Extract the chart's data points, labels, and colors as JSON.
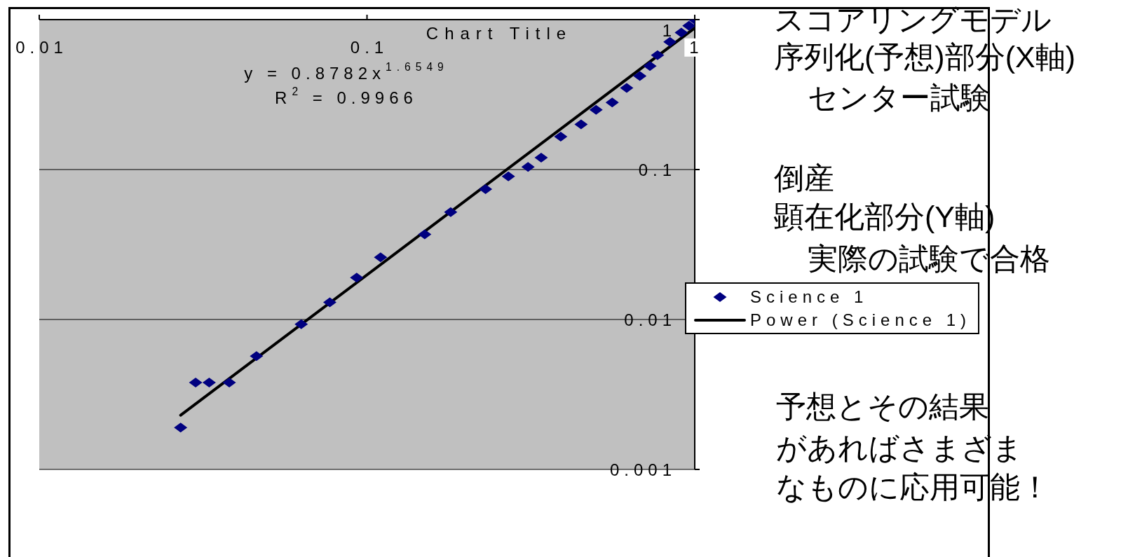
{
  "chart_data": {
    "type": "scatter",
    "title": "Chart Title",
    "annotations": [
      "y = 0.8782x$^{1.6549}$",
      "R$^{2}$ = 0.9966",
      "スコアリングモデル",
      "序列化(予想)部分(X軸)",
      "センター試験",
      "倒産",
      "顕在化部分(Y軸)",
      "実際の試験で合格",
      "予想とその結果",
      "があればさまざま",
      "なものに応用可能！"
    ],
    "series": [
      {
        "name": "Science 1",
        "color": "#000080",
        "marker": "diamond",
        "x": [
          0.027,
          0.03,
          0.033,
          0.038,
          0.046,
          0.063,
          0.077,
          0.093,
          0.11,
          0.15,
          0.18,
          0.23,
          0.27,
          0.31,
          0.34,
          0.39,
          0.45,
          0.5,
          0.56,
          0.62,
          0.68,
          0.73,
          0.77,
          0.84,
          0.91,
          0.96,
          1
        ],
        "values": [
          0.0019,
          0.0038,
          0.0038,
          0.0038,
          0.0057,
          0.0093,
          0.013,
          0.019,
          0.026,
          0.037,
          0.052,
          0.074,
          0.09,
          0.104,
          0.12,
          0.166,
          0.2,
          0.25,
          0.28,
          0.35,
          0.42,
          0.49,
          0.58,
          0.71,
          0.82,
          0.91,
          1
        ]
      },
      {
        "name": "Power (Science 1)",
        "type": "line",
        "color": "#000000",
        "line_style": "solid",
        "x": [
          0.027,
          1
        ],
        "values": [
          0.0023,
          0.88
        ]
      }
    ],
    "xlim": [
      0.01,
      1
    ],
    "xticks": [
      0.01,
      0.1,
      1
    ],
    "ylim": [
      0.001,
      1
    ],
    "yticks": [
      0.001,
      0.01,
      0.1,
      1
    ],
    "log": "xy",
    "grid": "y",
    "legend": "right"
  }
}
